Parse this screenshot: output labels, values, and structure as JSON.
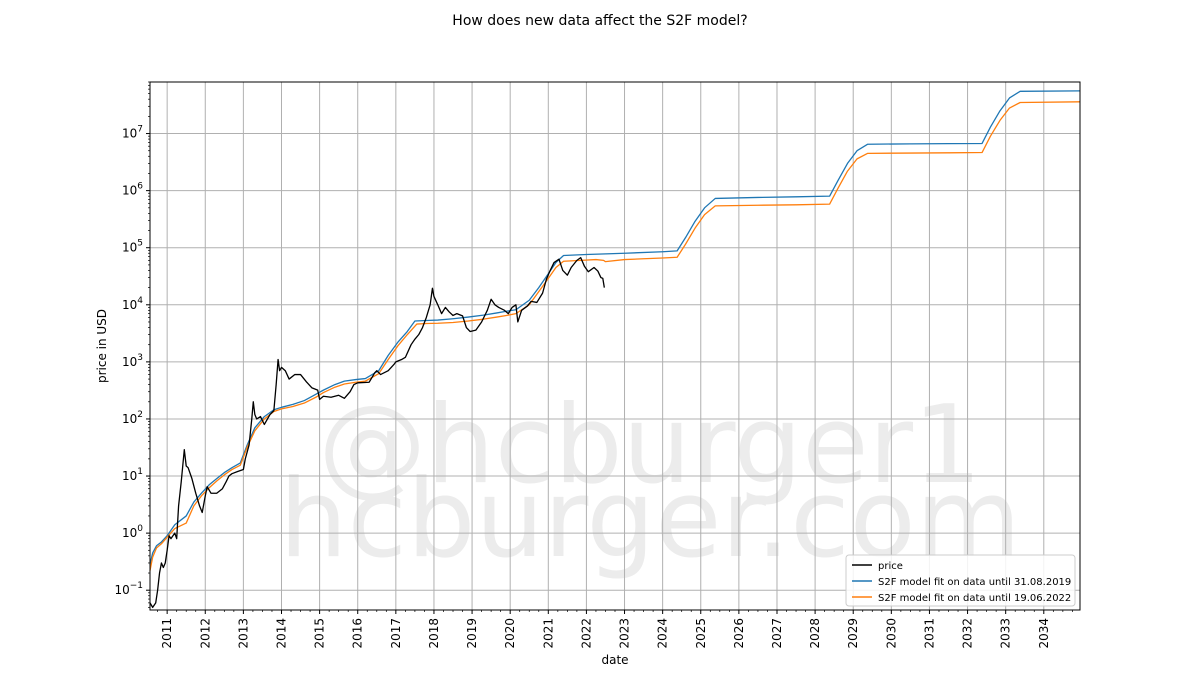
{
  "chart_data": {
    "type": "line",
    "title": "How does new data affect the S2F model?",
    "xlabel": "date",
    "ylabel": "price in USD",
    "yscale": "log",
    "xlim": [
      2010.55,
      2034.95
    ],
    "ylim": [
      0.045,
      80000000
    ],
    "grid": true,
    "legend_position": "lower-right",
    "x_ticks": [
      "2011",
      "2012",
      "2013",
      "2014",
      "2015",
      "2016",
      "2017",
      "2018",
      "2019",
      "2020",
      "2021",
      "2022",
      "2023",
      "2024",
      "2025",
      "2026",
      "2027",
      "2028",
      "2029",
      "2030",
      "2031",
      "2032",
      "2033",
      "2034"
    ],
    "y_ticks": [
      {
        "value": 0.1,
        "label": "10",
        "exp": "−1"
      },
      {
        "value": 1,
        "label": "10",
        "exp": "0"
      },
      {
        "value": 10,
        "label": "10",
        "exp": "1"
      },
      {
        "value": 100,
        "label": "10",
        "exp": "2"
      },
      {
        "value": 1000,
        "label": "10",
        "exp": "3"
      },
      {
        "value": 10000,
        "label": "10",
        "exp": "4"
      },
      {
        "value": 100000,
        "label": "10",
        "exp": "5"
      },
      {
        "value": 1000000,
        "label": "10",
        "exp": "6"
      },
      {
        "value": 10000000,
        "label": "10",
        "exp": "7"
      }
    ],
    "watermark": [
      "@hcburger1",
      "hcburger.com"
    ],
    "series": [
      {
        "name": "price",
        "color": "#000000",
        "points": [
          [
            2010.55,
            0.06
          ],
          [
            2010.62,
            0.05
          ],
          [
            2010.7,
            0.06
          ],
          [
            2010.75,
            0.1
          ],
          [
            2010.8,
            0.2
          ],
          [
            2010.85,
            0.3
          ],
          [
            2010.9,
            0.25
          ],
          [
            2010.95,
            0.3
          ],
          [
            2011.0,
            0.5
          ],
          [
            2011.05,
            0.9
          ],
          [
            2011.1,
            0.8
          ],
          [
            2011.2,
            1.0
          ],
          [
            2011.25,
            0.8
          ],
          [
            2011.3,
            3.0
          ],
          [
            2011.37,
            8.0
          ],
          [
            2011.45,
            29.0
          ],
          [
            2011.5,
            15.0
          ],
          [
            2011.55,
            14.0
          ],
          [
            2011.65,
            9.0
          ],
          [
            2011.75,
            5.0
          ],
          [
            2011.85,
            3.0
          ],
          [
            2011.92,
            2.3
          ],
          [
            2012.0,
            4.5
          ],
          [
            2012.05,
            6.5
          ],
          [
            2012.15,
            5.0
          ],
          [
            2012.3,
            5.0
          ],
          [
            2012.45,
            6.0
          ],
          [
            2012.55,
            8.0
          ],
          [
            2012.62,
            10.0
          ],
          [
            2012.7,
            11.0
          ],
          [
            2012.85,
            12.0
          ],
          [
            2013.0,
            13.0
          ],
          [
            2013.05,
            20.0
          ],
          [
            2013.15,
            35.0
          ],
          [
            2013.22,
            100.0
          ],
          [
            2013.26,
            200.0
          ],
          [
            2013.3,
            120.0
          ],
          [
            2013.35,
            100.0
          ],
          [
            2013.45,
            110.0
          ],
          [
            2013.55,
            80.0
          ],
          [
            2013.7,
            120.0
          ],
          [
            2013.8,
            140.0
          ],
          [
            2013.86,
            400.0
          ],
          [
            2013.91,
            1100.0
          ],
          [
            2013.95,
            700.0
          ],
          [
            2014.0,
            800.0
          ],
          [
            2014.1,
            700.0
          ],
          [
            2014.2,
            500.0
          ],
          [
            2014.35,
            600.0
          ],
          [
            2014.5,
            600.0
          ],
          [
            2014.65,
            450.0
          ],
          [
            2014.8,
            350.0
          ],
          [
            2014.95,
            320.0
          ],
          [
            2015.0,
            220.0
          ],
          [
            2015.1,
            250.0
          ],
          [
            2015.3,
            240.0
          ],
          [
            2015.5,
            260.0
          ],
          [
            2015.65,
            230.0
          ],
          [
            2015.8,
            300.0
          ],
          [
            2015.9,
            400.0
          ],
          [
            2016.0,
            430.0
          ],
          [
            2016.3,
            440.0
          ],
          [
            2016.45,
            650.0
          ],
          [
            2016.5,
            700.0
          ],
          [
            2016.6,
            600.0
          ],
          [
            2016.8,
            700.0
          ],
          [
            2016.95,
            900.0
          ],
          [
            2017.0,
            1000.0
          ],
          [
            2017.15,
            1100.0
          ],
          [
            2017.25,
            1200.0
          ],
          [
            2017.4,
            2000.0
          ],
          [
            2017.5,
            2500.0
          ],
          [
            2017.6,
            3000.0
          ],
          [
            2017.7,
            4000.0
          ],
          [
            2017.8,
            6000.0
          ],
          [
            2017.9,
            10000.0
          ],
          [
            2017.96,
            19500.0
          ],
          [
            2018.0,
            14000.0
          ],
          [
            2018.1,
            10000.0
          ],
          [
            2018.2,
            7000.0
          ],
          [
            2018.3,
            9000.0
          ],
          [
            2018.4,
            7500.0
          ],
          [
            2018.5,
            6500.0
          ],
          [
            2018.6,
            7000.0
          ],
          [
            2018.75,
            6400.0
          ],
          [
            2018.85,
            4000.0
          ],
          [
            2018.95,
            3400.0
          ],
          [
            2019.1,
            3600.0
          ],
          [
            2019.25,
            5000.0
          ],
          [
            2019.4,
            8000.0
          ],
          [
            2019.5,
            12500.0
          ],
          [
            2019.6,
            10000.0
          ],
          [
            2019.7,
            9000.0
          ],
          [
            2019.85,
            8000.0
          ],
          [
            2019.95,
            7000.0
          ],
          [
            2020.05,
            9000.0
          ],
          [
            2020.15,
            10000.0
          ],
          [
            2020.2,
            5000.0
          ],
          [
            2020.3,
            8000.0
          ],
          [
            2020.45,
            9500.0
          ],
          [
            2020.55,
            11500.0
          ],
          [
            2020.7,
            11000.0
          ],
          [
            2020.85,
            16000.0
          ],
          [
            2020.95,
            28000.0
          ],
          [
            2021.05,
            40000.0
          ],
          [
            2021.15,
            55000.0
          ],
          [
            2021.28,
            63000.0
          ],
          [
            2021.38,
            40000.0
          ],
          [
            2021.5,
            33000.0
          ],
          [
            2021.6,
            45000.0
          ],
          [
            2021.75,
            60000.0
          ],
          [
            2021.85,
            67000.0
          ],
          [
            2021.95,
            47000.0
          ],
          [
            2022.05,
            38000.0
          ],
          [
            2022.2,
            45000.0
          ],
          [
            2022.3,
            39000.0
          ],
          [
            2022.38,
            30000.0
          ],
          [
            2022.43,
            29000.0
          ],
          [
            2022.47,
            20000.0
          ]
        ]
      },
      {
        "name": "S2F model fit on data until 31.08.2019",
        "color": "#1f77b4",
        "points": [
          [
            2010.55,
            0.28
          ],
          [
            2010.62,
            0.45
          ],
          [
            2010.72,
            0.6
          ],
          [
            2010.85,
            0.7
          ],
          [
            2011.0,
            0.9
          ],
          [
            2011.2,
            1.4
          ],
          [
            2011.5,
            2.0
          ],
          [
            2011.7,
            3.5
          ],
          [
            2011.9,
            5.0
          ],
          [
            2012.1,
            7.0
          ],
          [
            2012.3,
            9.0
          ],
          [
            2012.5,
            11.5
          ],
          [
            2012.7,
            14.0
          ],
          [
            2012.92,
            17.0
          ],
          [
            2013.1,
            35.0
          ],
          [
            2013.3,
            70.0
          ],
          [
            2013.55,
            110.0
          ],
          [
            2013.8,
            145.0
          ],
          [
            2014.0,
            160.0
          ],
          [
            2014.3,
            180.0
          ],
          [
            2014.6,
            210.0
          ],
          [
            2014.9,
            270.0
          ],
          [
            2015.1,
            320.0
          ],
          [
            2015.4,
            400.0
          ],
          [
            2015.65,
            460.0
          ],
          [
            2015.95,
            490.0
          ],
          [
            2016.2,
            510.0
          ],
          [
            2016.55,
            700.0
          ],
          [
            2016.8,
            1300.0
          ],
          [
            2017.05,
            2200.0
          ],
          [
            2017.3,
            3400.0
          ],
          [
            2017.5,
            5200.0
          ],
          [
            2017.8,
            5300.0
          ],
          [
            2018.1,
            5400.0
          ],
          [
            2018.5,
            5700.0
          ],
          [
            2018.9,
            6100.0
          ],
          [
            2019.3,
            6600.0
          ],
          [
            2019.65,
            7200.0
          ],
          [
            2019.9,
            7700.0
          ],
          [
            2020.15,
            8200.0
          ],
          [
            2020.5,
            12000.0
          ],
          [
            2020.75,
            20000.0
          ],
          [
            2021.0,
            35000.0
          ],
          [
            2021.2,
            55000.0
          ],
          [
            2021.4,
            73000.0
          ],
          [
            2022.0,
            76000.0
          ],
          [
            2023.0,
            80000.0
          ],
          [
            2024.0,
            85000.0
          ],
          [
            2024.38,
            88000.0
          ],
          [
            2024.6,
            150000.0
          ],
          [
            2024.85,
            290000.0
          ],
          [
            2025.1,
            500000.0
          ],
          [
            2025.38,
            730000.0
          ],
          [
            2026.5,
            760000.0
          ],
          [
            2027.5,
            780000.0
          ],
          [
            2028.38,
            800000.0
          ],
          [
            2028.6,
            1500000.0
          ],
          [
            2028.85,
            3000000.0
          ],
          [
            2029.1,
            5000000.0
          ],
          [
            2029.38,
            6500000.0
          ],
          [
            2030.5,
            6600000.0
          ],
          [
            2031.5,
            6650000.0
          ],
          [
            2032.38,
            6700000.0
          ],
          [
            2032.6,
            13000000.0
          ],
          [
            2032.85,
            25000000.0
          ],
          [
            2033.1,
            42000000.0
          ],
          [
            2033.38,
            55000000.0
          ],
          [
            2034.95,
            56000000.0
          ]
        ]
      },
      {
        "name": "S2F model fit on data until 19.06.2022",
        "color": "#ff7f0e",
        "points": [
          [
            2010.55,
            0.22
          ],
          [
            2010.62,
            0.38
          ],
          [
            2010.72,
            0.55
          ],
          [
            2010.85,
            0.65
          ],
          [
            2011.0,
            0.85
          ],
          [
            2011.2,
            1.2
          ],
          [
            2011.5,
            1.5
          ],
          [
            2011.7,
            3.0
          ],
          [
            2011.9,
            4.5
          ],
          [
            2012.1,
            6.2
          ],
          [
            2012.3,
            8.2
          ],
          [
            2012.5,
            10.5
          ],
          [
            2012.7,
            13.0
          ],
          [
            2012.92,
            15.5
          ],
          [
            2013.1,
            32.0
          ],
          [
            2013.3,
            62.0
          ],
          [
            2013.55,
            100.0
          ],
          [
            2013.8,
            135.0
          ],
          [
            2014.0,
            150.0
          ],
          [
            2014.3,
            165.0
          ],
          [
            2014.6,
            190.0
          ],
          [
            2014.9,
            240.0
          ],
          [
            2015.1,
            290.0
          ],
          [
            2015.4,
            360.0
          ],
          [
            2015.65,
            410.0
          ],
          [
            2015.95,
            440.0
          ],
          [
            2016.2,
            460.0
          ],
          [
            2016.55,
            620.0
          ],
          [
            2016.8,
            1100.0
          ],
          [
            2017.05,
            1900.0
          ],
          [
            2017.3,
            3000.0
          ],
          [
            2017.55,
            4600.0
          ],
          [
            2017.8,
            4700.0
          ],
          [
            2018.1,
            4750.0
          ],
          [
            2018.5,
            4900.0
          ],
          [
            2018.9,
            5200.0
          ],
          [
            2019.3,
            5600.0
          ],
          [
            2019.65,
            6100.0
          ],
          [
            2019.9,
            6500.0
          ],
          [
            2020.15,
            7000.0
          ],
          [
            2020.5,
            10000.0
          ],
          [
            2020.75,
            17000.0
          ],
          [
            2021.0,
            29000.0
          ],
          [
            2021.2,
            45000.0
          ],
          [
            2021.4,
            58000.0
          ],
          [
            2021.85,
            60000.0
          ],
          [
            2022.25,
            62000.0
          ],
          [
            2022.45,
            60000.0
          ],
          [
            2022.5,
            57000.0
          ],
          [
            2023.0,
            62000.0
          ],
          [
            2023.5,
            64000.0
          ],
          [
            2024.0,
            66000.0
          ],
          [
            2024.38,
            68000.0
          ],
          [
            2024.6,
            115000.0
          ],
          [
            2024.85,
            220000.0
          ],
          [
            2025.1,
            380000.0
          ],
          [
            2025.38,
            540000.0
          ],
          [
            2026.5,
            555000.0
          ],
          [
            2027.5,
            565000.0
          ],
          [
            2028.38,
            580000.0
          ],
          [
            2028.6,
            1100000.0
          ],
          [
            2028.85,
            2200000.0
          ],
          [
            2029.1,
            3600000.0
          ],
          [
            2029.38,
            4500000.0
          ],
          [
            2030.5,
            4550000.0
          ],
          [
            2031.5,
            4600000.0
          ],
          [
            2032.38,
            4650000.0
          ],
          [
            2032.6,
            9000000.0
          ],
          [
            2032.85,
            17000000.0
          ],
          [
            2033.1,
            28000000.0
          ],
          [
            2033.38,
            35000000.0
          ],
          [
            2034.95,
            36000000.0
          ]
        ]
      }
    ]
  }
}
